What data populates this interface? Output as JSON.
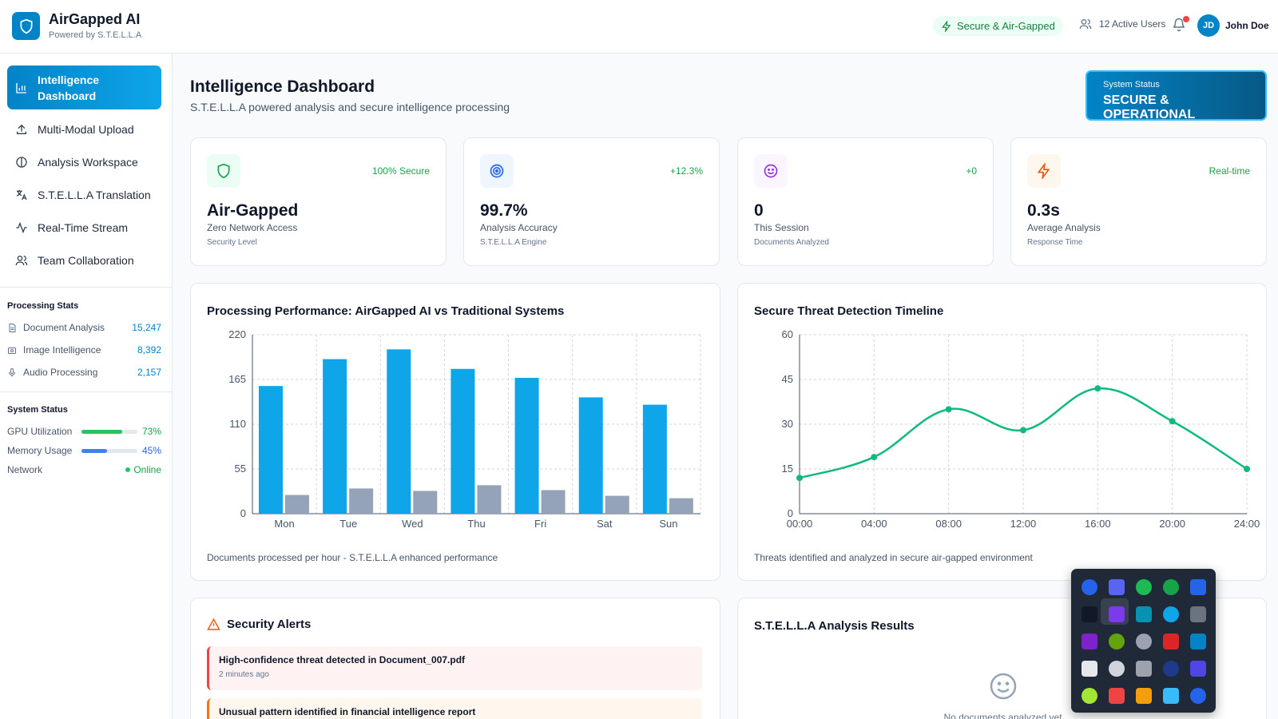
{
  "header": {
    "app_title": "AirGapped AI",
    "app_subtitle": "Powered by S.T.E.L.L.A",
    "secure_label": "Secure & Air-Gapped",
    "active_users": "12 Active Users",
    "user_initials": "JD",
    "user_name": "John Doe"
  },
  "sidebar": {
    "nav": [
      {
        "label": "Intelligence Dashboard",
        "icon": "bar-chart-icon",
        "active": true
      },
      {
        "label": "Multi-Modal Upload",
        "icon": "upload-icon"
      },
      {
        "label": "Analysis Workspace",
        "icon": "brain-icon"
      },
      {
        "label": "S.T.E.L.L.A Translation",
        "icon": "translate-icon"
      },
      {
        "label": "Real-Time Stream",
        "icon": "activity-icon"
      },
      {
        "label": "Team Collaboration",
        "icon": "users-icon"
      }
    ],
    "processing_heading": "Processing Stats",
    "processing": [
      {
        "label": "Document Analysis",
        "value": "15,247",
        "icon": "document-icon"
      },
      {
        "label": "Image Intelligence",
        "value": "8,392",
        "icon": "camera-icon"
      },
      {
        "label": "Audio Processing",
        "value": "2,157",
        "icon": "microphone-icon"
      }
    ],
    "system_heading": "System Status",
    "system": [
      {
        "label": "GPU Utilization",
        "value": "73%",
        "level": 0.73,
        "color": "#22c55e"
      },
      {
        "label": "Memory Usage",
        "value": "45%",
        "level": 0.45,
        "color": "#3b82f6"
      },
      {
        "label": "Network",
        "value": "Online",
        "color": "#22c55e"
      }
    ]
  },
  "main": {
    "title": "Intelligence Dashboard",
    "subtitle": "S.T.E.L.L.A powered analysis and secure intelligence processing",
    "status_label": "System Status",
    "status_value": "SECURE & OPERATIONAL",
    "kpis": [
      {
        "badge": "100% Secure",
        "value": "Air-Gapped",
        "label": "Zero Network Access",
        "sub": "Security Level",
        "icon": "shield-icon",
        "color": "#16a34a"
      },
      {
        "badge": "+12.3%",
        "value": "99.7%",
        "label": "Analysis Accuracy",
        "sub": "S.T.E.L.L.A Engine",
        "icon": "target-icon",
        "color": "#2563eb"
      },
      {
        "badge": "+0",
        "value": "0",
        "label": "This Session",
        "sub": "Documents Analyzed",
        "icon": "smile-icon",
        "color": "#9333ea"
      },
      {
        "badge": "Real-time",
        "value": "0.3s",
        "label": "Average Analysis",
        "sub": "Response Time",
        "icon": "lightning-icon",
        "color": "#ea580c"
      }
    ],
    "perf_title": "Processing Performance: AirGapped AI vs Traditional Systems",
    "perf_caption": "Documents processed per hour - S.T.E.L.L.A enhanced performance",
    "threat_title": "Secure Threat Detection Timeline",
    "threat_caption": "Threats identified and analyzed in secure air-gapped environment",
    "alerts_title": "Security Alerts",
    "alerts": [
      {
        "text": "High-confidence threat detected in Document_007.pdf",
        "time": "2 minutes ago",
        "tone": "red"
      },
      {
        "text": "Unusual pattern identified in financial intelligence report",
        "time": "",
        "tone": "orange"
      }
    ],
    "results_title": "S.T.E.L.L.A Analysis Results",
    "results_empty": "No documents analyzed yet"
  },
  "chart_data": [
    {
      "type": "bar",
      "title": "Processing Performance: AirGapped AI vs Traditional Systems",
      "categories": [
        "Mon",
        "Tue",
        "Wed",
        "Thu",
        "Fri",
        "Sat",
        "Sun"
      ],
      "series": [
        {
          "color": "#0ea5e9",
          "values": [
            157,
            190,
            202,
            178,
            167,
            143,
            134
          ]
        },
        {
          "color": "#94a3b8",
          "values": [
            23,
            31,
            28,
            35,
            29,
            22,
            19
          ]
        }
      ],
      "ylim": [
        0,
        220
      ],
      "yticks": [
        0,
        55,
        110,
        165,
        220
      ],
      "grid": true
    },
    {
      "type": "line",
      "title": "Secure Threat Detection Timeline",
      "x": [
        "00:00",
        "04:00",
        "08:00",
        "12:00",
        "16:00",
        "20:00",
        "24:00"
      ],
      "values": [
        12,
        19,
        35,
        28,
        42,
        31,
        15
      ],
      "color": "#10b981",
      "ylim": [
        0,
        60
      ],
      "yticks": [
        0,
        15,
        30,
        45,
        60
      ],
      "grid": true
    }
  ]
}
